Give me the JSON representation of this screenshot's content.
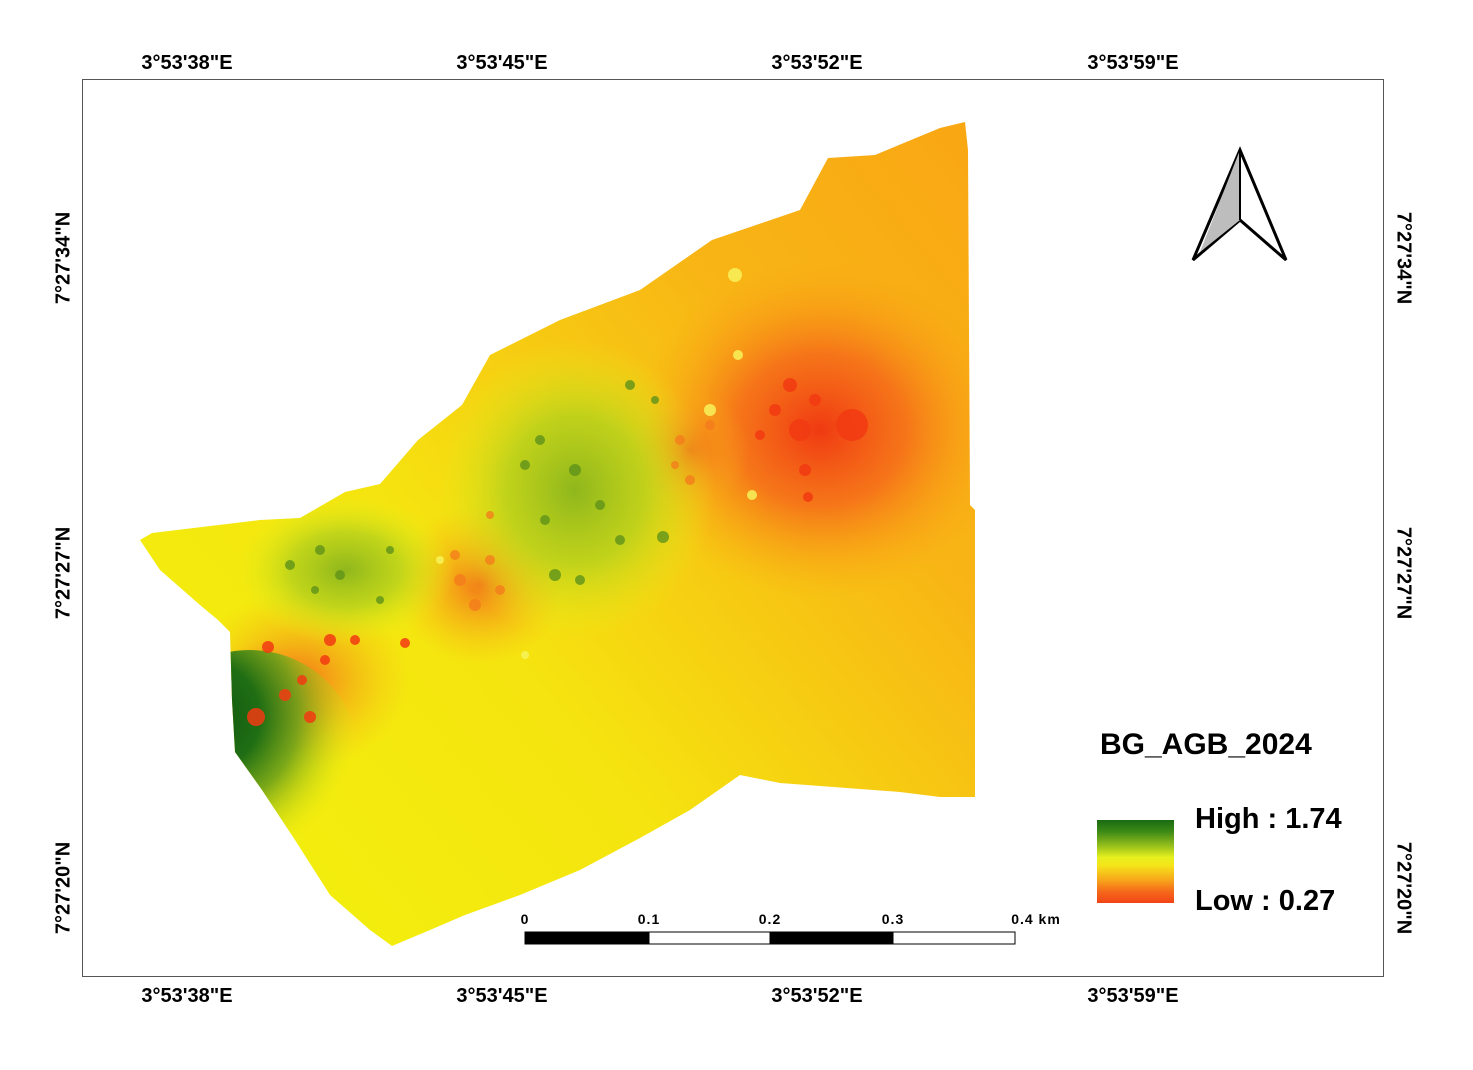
{
  "map": {
    "top_labels": [
      "3°53'38\"E",
      "3°53'45\"E",
      "3°53'52\"E",
      "3°53'59\"E"
    ],
    "bottom_labels": [
      "3°53'38\"E",
      "3°53'45\"E",
      "3°53'52\"E",
      "3°53'59\"E"
    ],
    "left_labels": [
      "7°27'34\"N",
      "7°27'27\"N",
      "7°27'20\"N"
    ],
    "right_labels": [
      "7°27'34\"N",
      "7°27'27\"N",
      "7°27'20\"N"
    ]
  },
  "legend": {
    "title": "BG_AGB_2024",
    "high": "High : 1.74",
    "low": "Low : 0.27",
    "colors": [
      "#1a6b12",
      "#9bc21c",
      "#e6f01e",
      "#f7a71b",
      "#f24316"
    ]
  },
  "scale_bar": {
    "labels": [
      "0",
      "0.1",
      "0.2",
      "0.3",
      "0.4 km"
    ]
  },
  "north_arrow": {
    "icon": "north-arrow-icon"
  }
}
